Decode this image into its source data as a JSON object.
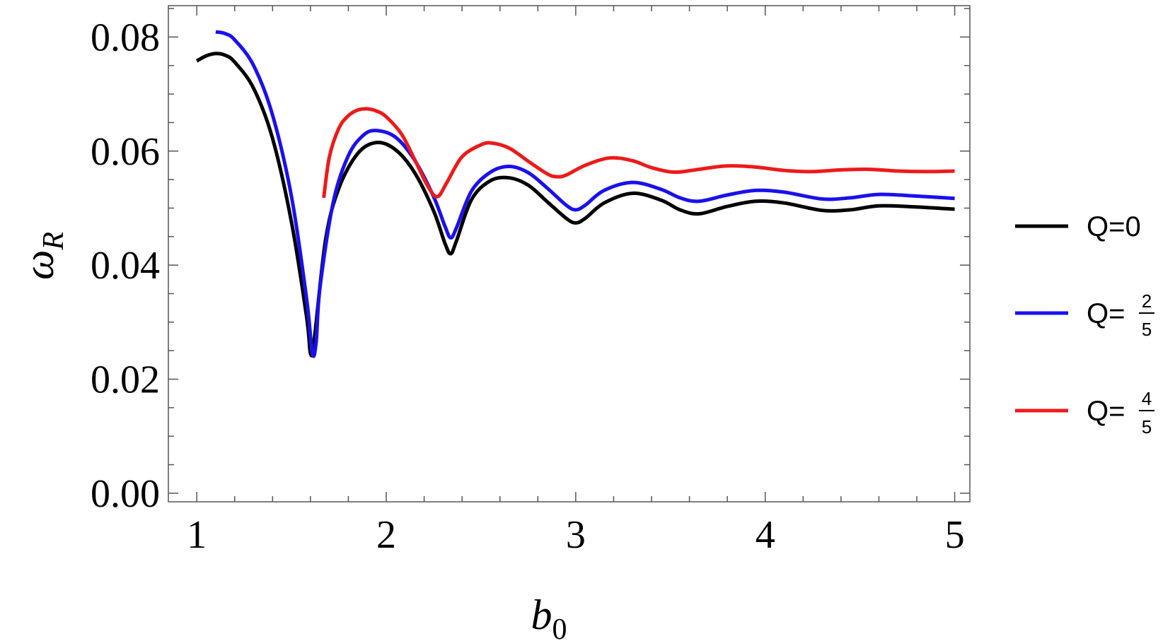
{
  "chart_data": {
    "type": "line",
    "xlabel": "b",
    "xlabel_sub": "0",
    "ylabel": "ω",
    "ylabel_sub": "R",
    "xlim": [
      0.85,
      5.08
    ],
    "ylim": [
      -0.0015,
      0.0855
    ],
    "x_ticks": [
      1,
      2,
      3,
      4,
      5
    ],
    "x_tick_labels": [
      "1",
      "2",
      "3",
      "4",
      "5"
    ],
    "y_ticks": [
      0.0,
      0.02,
      0.04,
      0.06,
      0.08
    ],
    "y_tick_labels": [
      "0.00",
      "0.02",
      "0.04",
      "0.06",
      "0.08"
    ],
    "grid": false,
    "legend_position": "right",
    "series": [
      {
        "name": "Q=0",
        "color": "#000000",
        "x": [
          1.0,
          1.05,
          1.1,
          1.15,
          1.2,
          1.3,
          1.4,
          1.5,
          1.58,
          1.6,
          1.62,
          1.68,
          1.75,
          1.85,
          1.95,
          2.05,
          2.15,
          2.25,
          2.31,
          2.34,
          2.37,
          2.45,
          2.55,
          2.65,
          2.75,
          2.85,
          2.95,
          3.0,
          3.05,
          3.15,
          3.3,
          3.45,
          3.55,
          3.65,
          3.8,
          3.95,
          4.1,
          4.3,
          4.45,
          4.6,
          4.8,
          5.0
        ],
        "y": [
          0.0758,
          0.0767,
          0.0771,
          0.0768,
          0.0756,
          0.071,
          0.0622,
          0.0475,
          0.0308,
          0.0245,
          0.027,
          0.0445,
          0.0535,
          0.0596,
          0.0615,
          0.0602,
          0.0562,
          0.0495,
          0.0438,
          0.042,
          0.0442,
          0.0515,
          0.0548,
          0.0553,
          0.054,
          0.0511,
          0.0482,
          0.0474,
          0.0482,
          0.0509,
          0.0526,
          0.0514,
          0.0497,
          0.049,
          0.0503,
          0.0512,
          0.0509,
          0.0496,
          0.0497,
          0.0504,
          0.0502,
          0.0498
        ]
      },
      {
        "name": "Q=2/5",
        "name_main": "Q=",
        "name_num": "2",
        "name_den": "5",
        "color": "#1a10ee",
        "x": [
          1.1,
          1.15,
          1.2,
          1.3,
          1.4,
          1.5,
          1.58,
          1.61,
          1.63,
          1.65,
          1.72,
          1.8,
          1.88,
          1.95,
          2.05,
          2.15,
          2.25,
          2.31,
          2.34,
          2.37,
          2.45,
          2.55,
          2.65,
          2.75,
          2.85,
          2.95,
          3.0,
          3.05,
          3.15,
          3.3,
          3.45,
          3.55,
          3.65,
          3.8,
          3.95,
          4.1,
          4.3,
          4.45,
          4.6,
          4.8,
          5.0
        ],
        "y": [
          0.0809,
          0.0806,
          0.0795,
          0.075,
          0.0663,
          0.052,
          0.034,
          0.0245,
          0.0265,
          0.036,
          0.051,
          0.0592,
          0.0628,
          0.0636,
          0.0624,
          0.0584,
          0.052,
          0.0468,
          0.0448,
          0.0465,
          0.053,
          0.0563,
          0.0573,
          0.0562,
          0.0535,
          0.0505,
          0.0497,
          0.0505,
          0.0531,
          0.0545,
          0.0533,
          0.0518,
          0.0512,
          0.0523,
          0.0531,
          0.0528,
          0.0516,
          0.0518,
          0.0524,
          0.0521,
          0.0517
        ]
      },
      {
        "name": "Q=4/5",
        "name_main": "Q=",
        "name_num": "4",
        "name_den": "5",
        "color": "#ee1a1a",
        "x": [
          1.67,
          1.7,
          1.75,
          1.8,
          1.85,
          1.9,
          1.95,
          2.0,
          2.08,
          2.15,
          2.22,
          2.27,
          2.32,
          2.4,
          2.5,
          2.56,
          2.65,
          2.75,
          2.85,
          2.9,
          2.95,
          3.05,
          3.18,
          3.3,
          3.4,
          3.52,
          3.65,
          3.8,
          3.95,
          4.1,
          4.25,
          4.4,
          4.55,
          4.7,
          4.85,
          5.0
        ],
        "y": [
          0.0518,
          0.059,
          0.064,
          0.0662,
          0.0672,
          0.0674,
          0.067,
          0.066,
          0.063,
          0.0585,
          0.0538,
          0.052,
          0.0545,
          0.059,
          0.0611,
          0.0614,
          0.0605,
          0.0582,
          0.056,
          0.0555,
          0.0558,
          0.0575,
          0.0588,
          0.0583,
          0.0571,
          0.0563,
          0.0568,
          0.0574,
          0.0572,
          0.0566,
          0.0564,
          0.0567,
          0.0568,
          0.0565,
          0.0564,
          0.0565
        ]
      }
    ]
  }
}
